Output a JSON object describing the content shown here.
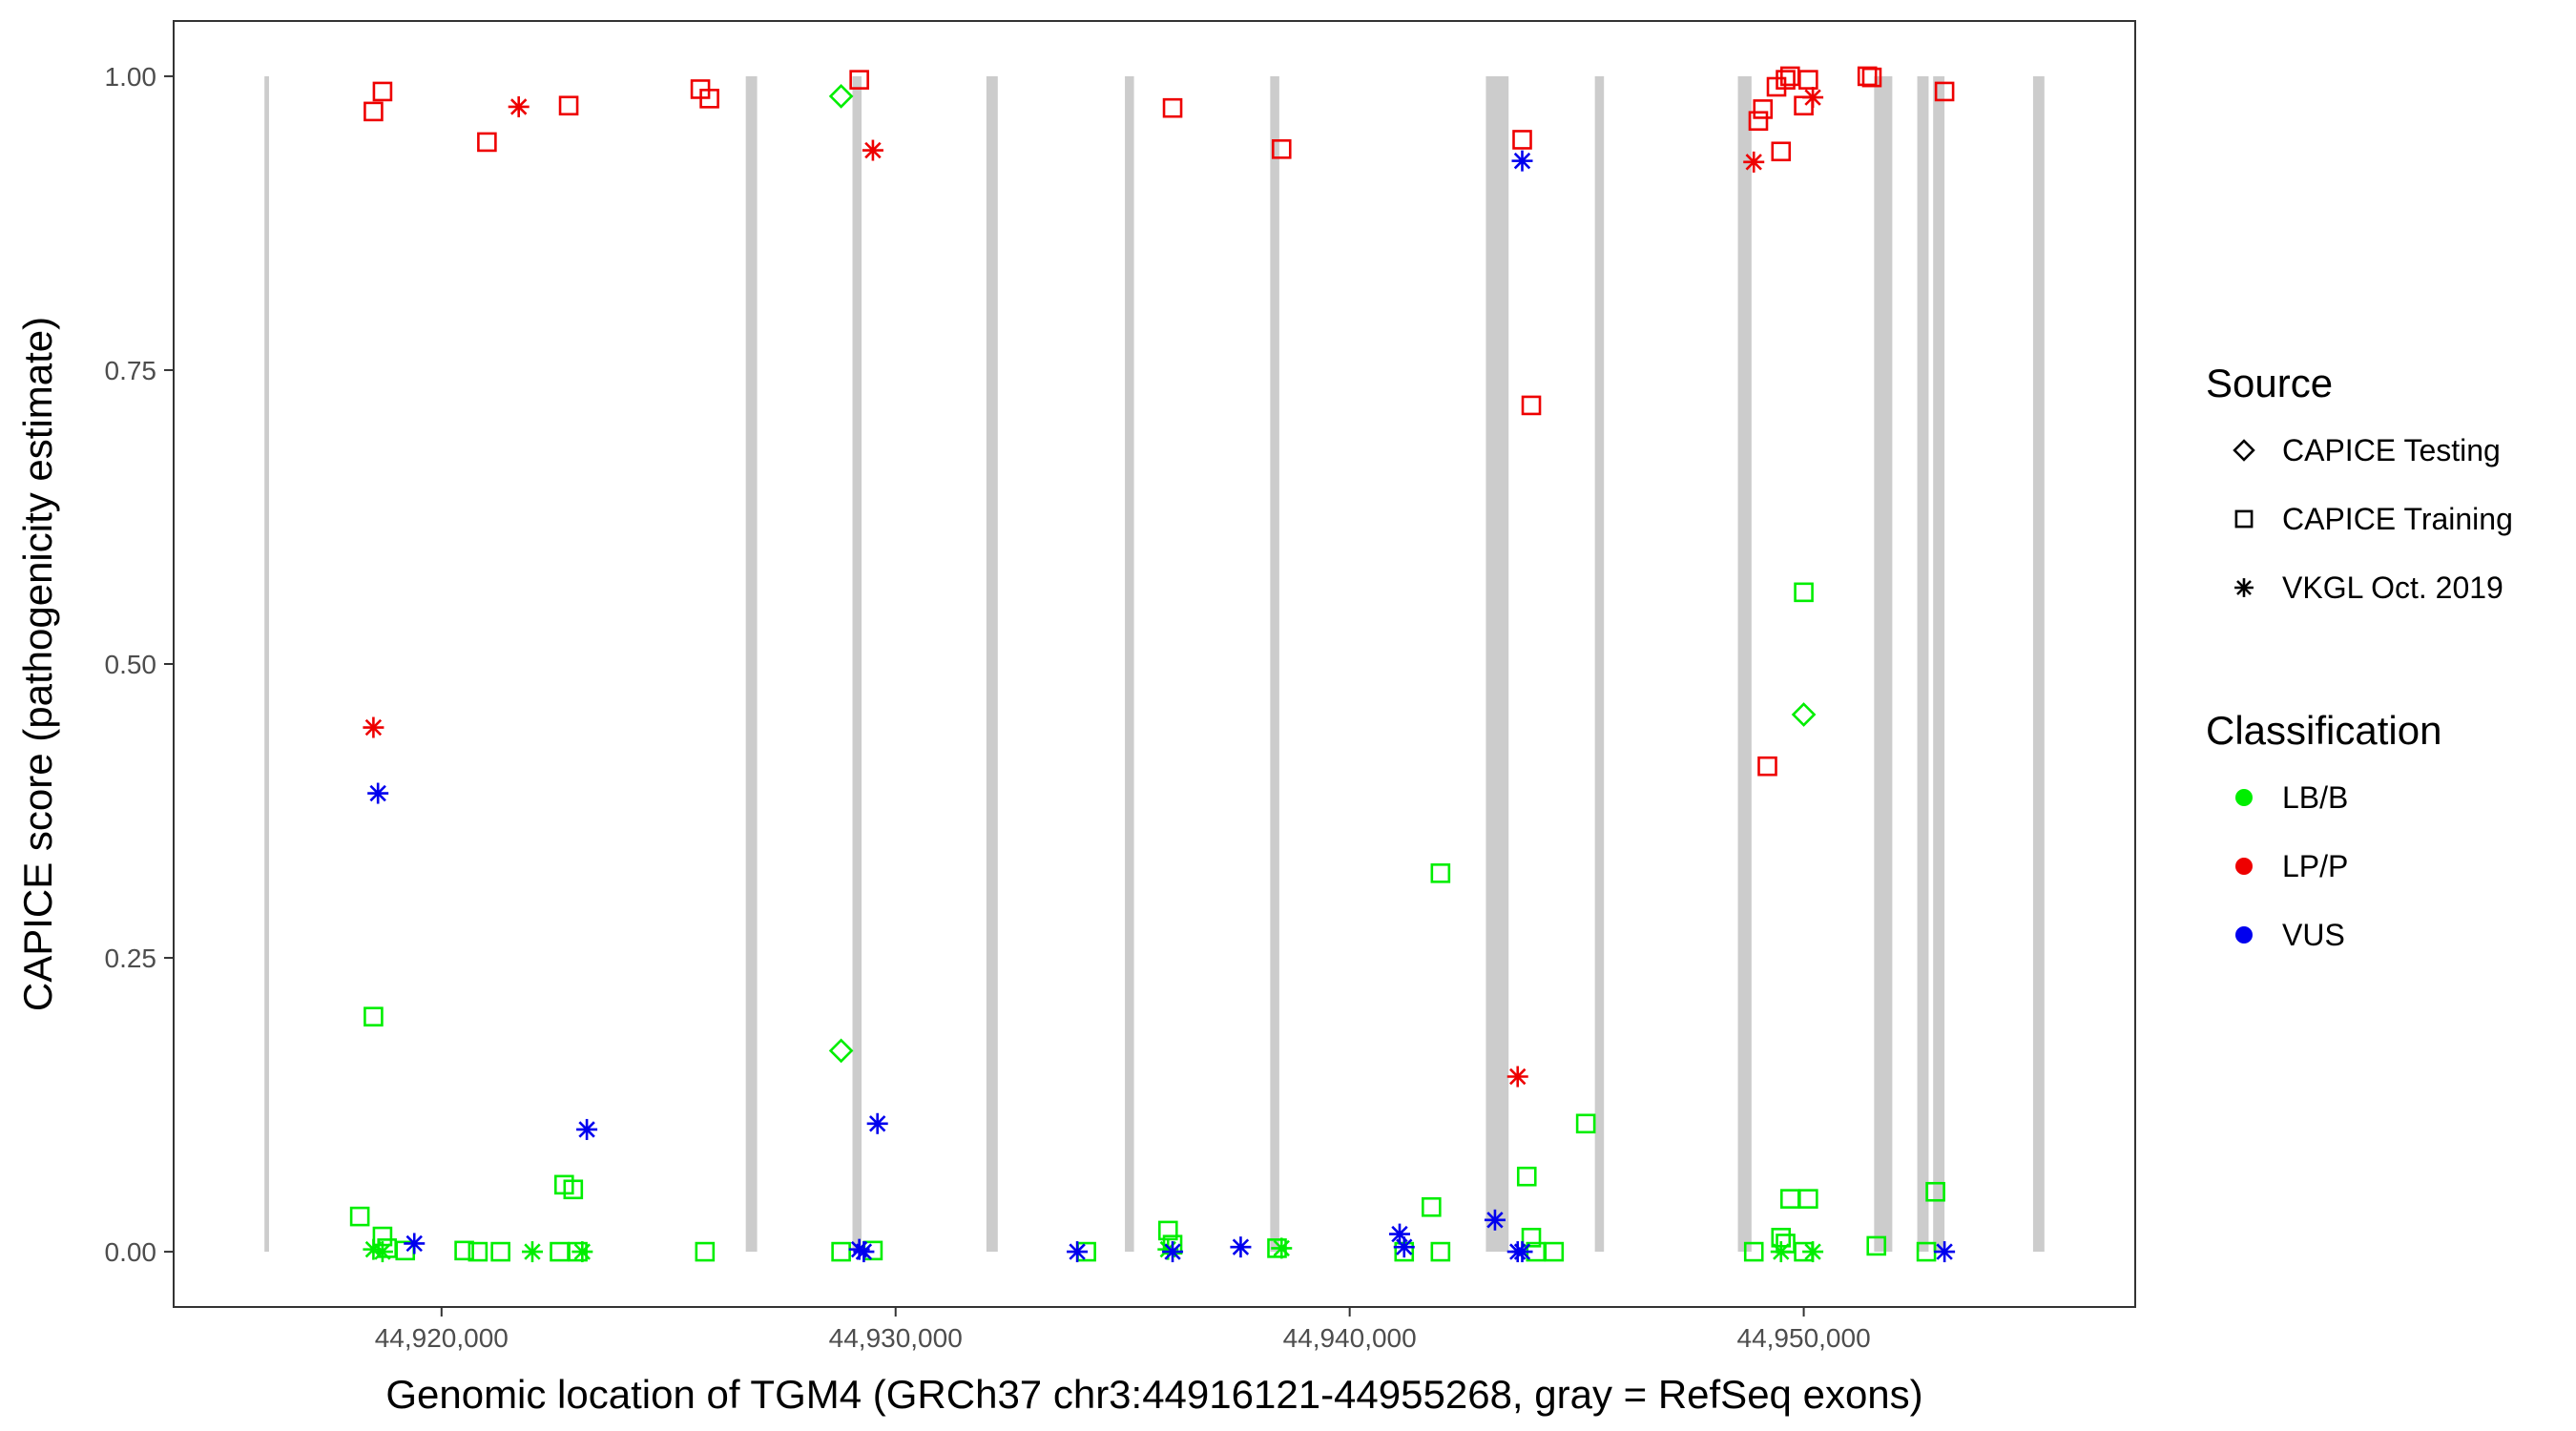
{
  "chart_data": {
    "type": "scatter",
    "title": "",
    "xlabel": "Genomic location of TGM4 (GRCh37 chr3:44916121-44955268, gray = RefSeq exons)",
    "ylabel": "CAPICE score (pathogenicity estimate)",
    "xlim": [
      44914100,
      44957300
    ],
    "ylim": [
      -0.047,
      1.047
    ],
    "x_ticks": [
      {
        "value": 44920000,
        "label": "44,920,000"
      },
      {
        "value": 44930000,
        "label": "44,930,000"
      },
      {
        "value": 44940000,
        "label": "44,940,000"
      },
      {
        "value": 44950000,
        "label": "44,950,000"
      }
    ],
    "y_ticks": [
      {
        "value": 0.0,
        "label": "0.00"
      },
      {
        "value": 0.25,
        "label": "0.25"
      },
      {
        "value": 0.5,
        "label": "0.50"
      },
      {
        "value": 0.75,
        "label": "0.75"
      },
      {
        "value": 1.0,
        "label": "1.00"
      }
    ],
    "grid": false,
    "exon_color": "#cccccc",
    "exons": [
      [
        44916100,
        44916200
      ],
      [
        44926700,
        44926950
      ],
      [
        44929050,
        44929250
      ],
      [
        44932000,
        44932250
      ],
      [
        44935050,
        44935250
      ],
      [
        44938250,
        44938450
      ],
      [
        44943000,
        44943500
      ],
      [
        44945400,
        44945600
      ],
      [
        44948550,
        44948850
      ],
      [
        44951550,
        44951950
      ],
      [
        44952500,
        44952750
      ],
      [
        44952850,
        44953100
      ],
      [
        44955050,
        44955300
      ]
    ],
    "legend": {
      "position": "right",
      "source_title": "Source",
      "source_items": [
        {
          "label": "CAPICE Testing",
          "shape": "diamond"
        },
        {
          "label": "CAPICE Training",
          "shape": "square"
        },
        {
          "label": "VKGL Oct. 2019",
          "shape": "star"
        }
      ],
      "class_title": "Classification",
      "class_items": [
        {
          "label": "LB/B",
          "color": "#00ee00"
        },
        {
          "label": "LP/P",
          "color": "#ee0000"
        },
        {
          "label": "VUS",
          "color": "#0000ee"
        }
      ]
    },
    "series": [
      {
        "source": "CAPICE Training",
        "classification": "LP/P",
        "points": [
          [
            44918500,
            0.97
          ],
          [
            44918700,
            0.987
          ],
          [
            44921000,
            0.944
          ],
          [
            44922800,
            0.975
          ],
          [
            44925700,
            0.989
          ],
          [
            44925900,
            0.981
          ],
          [
            44929200,
            0.997
          ],
          [
            44936100,
            0.973
          ],
          [
            44938500,
            0.938
          ],
          [
            44943800,
            0.946
          ],
          [
            44944000,
            0.72
          ],
          [
            44949000,
            0.962
          ],
          [
            44949100,
            0.972
          ],
          [
            44949200,
            0.413
          ],
          [
            44949400,
            0.991
          ],
          [
            44949500,
            0.936
          ],
          [
            44949600,
            0.997
          ],
          [
            44949700,
            1.0
          ],
          [
            44950000,
            0.975
          ],
          [
            44950100,
            0.997
          ],
          [
            44951400,
            1.0
          ],
          [
            44951500,
            0.999
          ],
          [
            44953100,
            0.987
          ]
        ]
      },
      {
        "source": "VKGL Oct. 2019",
        "classification": "LP/P",
        "points": [
          [
            44918500,
            0.446
          ],
          [
            44921700,
            0.974
          ],
          [
            44929500,
            0.937
          ],
          [
            44943700,
            0.149
          ],
          [
            44948900,
            0.927
          ],
          [
            44950200,
            0.982
          ]
        ]
      },
      {
        "source": "CAPICE Testing",
        "classification": "LB/B",
        "points": [
          [
            44928800,
            0.983
          ],
          [
            44928800,
            0.171
          ],
          [
            44950000,
            0.457
          ]
        ]
      },
      {
        "source": "CAPICE Training",
        "classification": "LB/B",
        "points": [
          [
            44918500,
            0.2
          ],
          [
            44918200,
            0.03
          ],
          [
            44918700,
            0.013
          ],
          [
            44918800,
            0.003
          ],
          [
            44919200,
            0.001
          ],
          [
            44920500,
            0.001
          ],
          [
            44920800,
            0.0
          ],
          [
            44921300,
            0.0
          ],
          [
            44922700,
            0.057
          ],
          [
            44922900,
            0.053
          ],
          [
            44922600,
            0.0
          ],
          [
            44923000,
            0.0
          ],
          [
            44925800,
            0.0
          ],
          [
            44928800,
            0.0
          ],
          [
            44929500,
            0.001
          ],
          [
            44934200,
            0.0
          ],
          [
            44936000,
            0.018
          ],
          [
            44936100,
            0.006
          ],
          [
            44938400,
            0.003
          ],
          [
            44941200,
            0.0
          ],
          [
            44941800,
            0.038
          ],
          [
            44942000,
            0.322
          ],
          [
            44942000,
            0.0
          ],
          [
            44943900,
            0.064
          ],
          [
            44944000,
            0.012
          ],
          [
            44944100,
            0.0
          ],
          [
            44944500,
            0.0
          ],
          [
            44945200,
            0.109
          ],
          [
            44948900,
            0.0
          ],
          [
            44949500,
            0.012
          ],
          [
            44949600,
            0.007
          ],
          [
            44949700,
            0.045
          ],
          [
            44950000,
            0.561
          ],
          [
            44950100,
            0.045
          ],
          [
            44950000,
            0.0
          ],
          [
            44951600,
            0.005
          ],
          [
            44952900,
            0.051
          ],
          [
            44952700,
            0.0
          ]
        ]
      },
      {
        "source": "VKGL Oct. 2019",
        "classification": "LB/B",
        "points": [
          [
            44918500,
            0.002
          ],
          [
            44918700,
            0.0
          ],
          [
            44922000,
            0.0
          ],
          [
            44923100,
            0.0
          ],
          [
            44936000,
            0.002
          ],
          [
            44938500,
            0.003
          ],
          [
            44949500,
            0.0
          ],
          [
            44950200,
            0.0
          ]
        ]
      },
      {
        "source": "VKGL Oct. 2019",
        "classification": "VUS",
        "points": [
          [
            44918600,
            0.39
          ],
          [
            44919400,
            0.007
          ],
          [
            44923200,
            0.104
          ],
          [
            44929200,
            0.002
          ],
          [
            44929600,
            0.109
          ],
          [
            44929300,
            0.0
          ],
          [
            44934000,
            0.0
          ],
          [
            44936100,
            0.0
          ],
          [
            44937600,
            0.004
          ],
          [
            44941100,
            0.015
          ],
          [
            44941200,
            0.004
          ],
          [
            44943200,
            0.027
          ],
          [
            44943800,
            0.928
          ],
          [
            44943700,
            0.0
          ],
          [
            44943800,
            0.0
          ],
          [
            44953100,
            0.0
          ]
        ]
      }
    ]
  }
}
